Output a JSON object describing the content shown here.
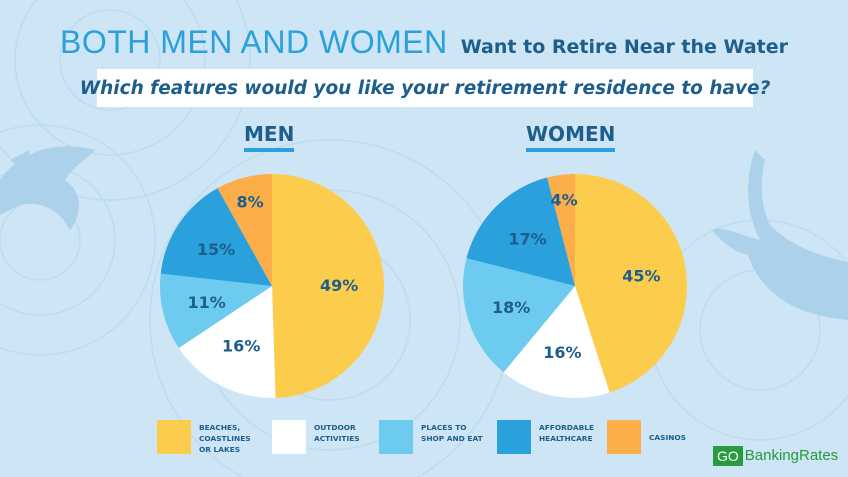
{
  "header": {
    "title_big": "BOTH MEN AND WOMEN",
    "title_small": "Want to Retire Near the Water",
    "question": "Which features would you like your retirement residence to have?"
  },
  "colors": {
    "beaches": "#fccd4d",
    "outdoor": "#ffffff",
    "places": "#6dcbef",
    "healthcare": "#2aa0dc",
    "casinos": "#fbae4a",
    "label_text": "#1d5e8c",
    "accent": "#2aa0dc"
  },
  "legend": [
    {
      "key": "beaches",
      "label": "BEACHES,\nCOASTLINES\nOR LAKES"
    },
    {
      "key": "outdoor",
      "label": "OUTDOOR\nACTIVITIES"
    },
    {
      "key": "places",
      "label": "PLACES TO\nSHOP AND EAT"
    },
    {
      "key": "healthcare",
      "label": "AFFORDABLE\nHEALTHCARE"
    },
    {
      "key": "casinos",
      "label": "CASINOS"
    }
  ],
  "chart_data": [
    {
      "type": "pie",
      "title": "MEN",
      "categories": [
        "BEACHES, COASTLINES OR LAKES",
        "OUTDOOR ACTIVITIES",
        "PLACES TO SHOP AND EAT",
        "AFFORDABLE HEALTHCARE",
        "CASINOS"
      ],
      "keys": [
        "beaches",
        "outdoor",
        "places",
        "healthcare",
        "casinos"
      ],
      "values": [
        49,
        16,
        11,
        15,
        8
      ],
      "labels": [
        "49%",
        "16%",
        "11%",
        "15%",
        "8%"
      ]
    },
    {
      "type": "pie",
      "title": "WOMEN",
      "categories": [
        "BEACHES, COASTLINES OR LAKES",
        "OUTDOOR ACTIVITIES",
        "PLACES TO SHOP AND EAT",
        "AFFORDABLE HEALTHCARE",
        "CASINOS"
      ],
      "keys": [
        "beaches",
        "outdoor",
        "places",
        "healthcare",
        "casinos"
      ],
      "values": [
        45,
        16,
        18,
        17,
        4
      ],
      "labels": [
        "45%",
        "16%",
        "18%",
        "17%",
        "4%"
      ]
    }
  ],
  "logo": {
    "go": "GO",
    "rest": "BankingRates"
  }
}
